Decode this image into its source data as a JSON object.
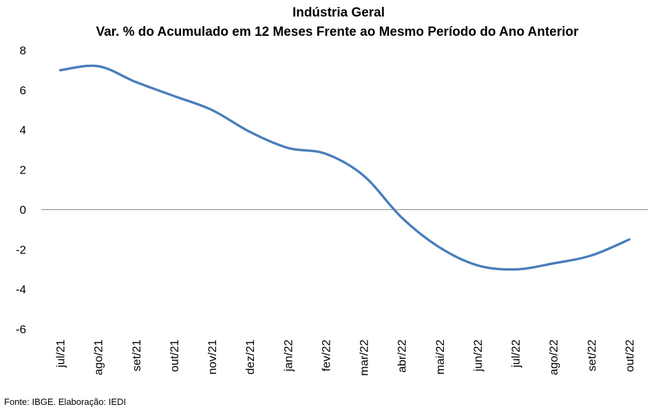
{
  "chart_data": {
    "type": "line",
    "title": "Indústria Geral",
    "subtitle": "Var. % do Acumulado em 12 Meses Frente ao Mesmo Período do Ano Anterior",
    "xlabel": "",
    "ylabel": "",
    "categories": [
      "jul/21",
      "ago/21",
      "set/21",
      "out/21",
      "nov/21",
      "dez/21",
      "jan/22",
      "fev/22",
      "mar/22",
      "abr/22",
      "mai/22",
      "jun/22",
      "jul/22",
      "ago/22",
      "set/22",
      "out/22"
    ],
    "series": [
      {
        "values": [
          7.0,
          7.2,
          6.4,
          5.7,
          5.0,
          3.9,
          3.1,
          2.8,
          1.7,
          -0.4,
          -1.9,
          -2.8,
          -3.0,
          -2.7,
          -2.3,
          -1.5
        ]
      }
    ],
    "ylim": [
      -6,
      8
    ],
    "yticks": [
      "8",
      "6",
      "4",
      "2",
      "0",
      "-2",
      "-4",
      "-6"
    ],
    "ytick_values": [
      8,
      6,
      4,
      2,
      0,
      -2,
      -4,
      -6
    ],
    "grid": false,
    "legend": "none",
    "line_color": "#4a7ebb",
    "zero_line_color": "#808080"
  },
  "footer": {
    "source": "Fonte: IBGE. Elaboração: IEDI"
  }
}
